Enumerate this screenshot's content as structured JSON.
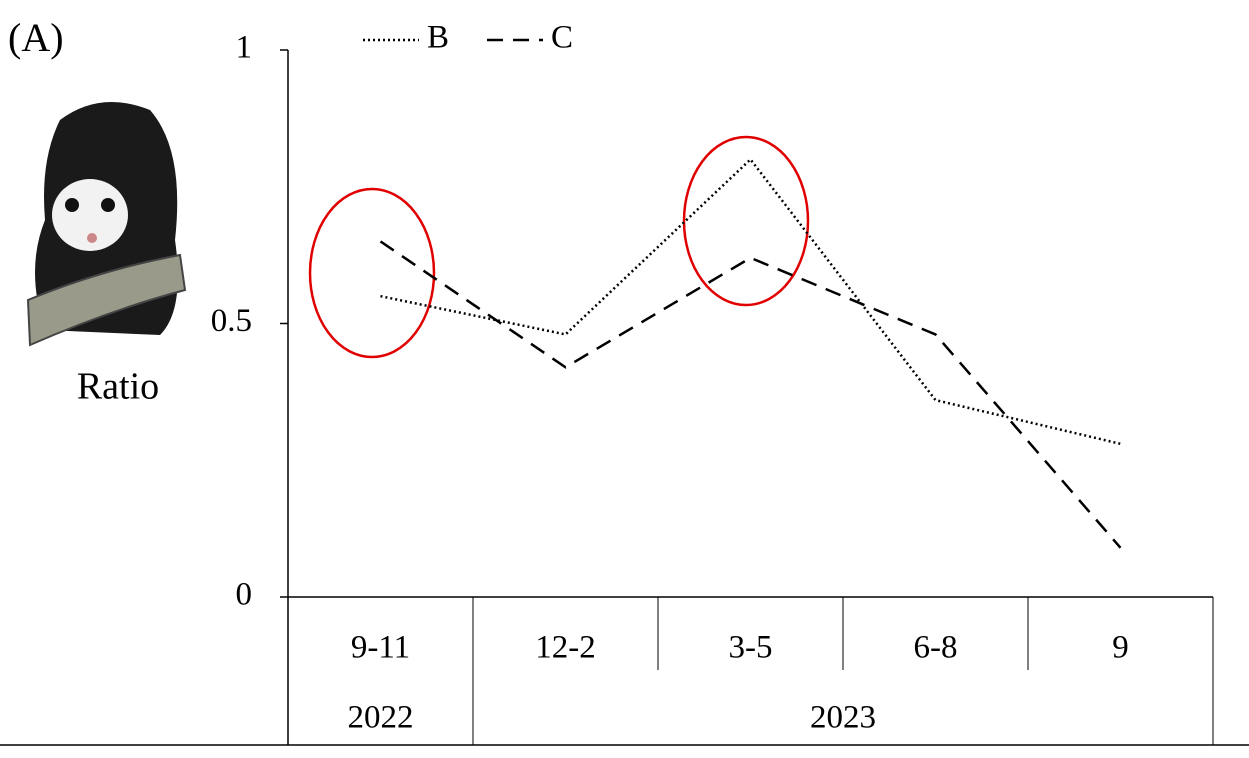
{
  "chart_data": {
    "type": "line",
    "panel_label": "(A)",
    "y_label": "Ratio",
    "categories": [
      "9-11",
      "12-2",
      "3-5",
      "6-8",
      "9"
    ],
    "groups": [
      {
        "label": "2022",
        "size": 1
      },
      {
        "label": "2023",
        "size": 4
      }
    ],
    "series": [
      {
        "name": "B",
        "color": "#000000",
        "style": "dotted",
        "values": [
          0.55,
          0.48,
          0.8,
          0.36,
          0.28
        ]
      },
      {
        "name": "C",
        "color": "#000000",
        "style": "dashed",
        "values": [
          0.65,
          0.42,
          0.62,
          0.48,
          0.09
        ]
      }
    ],
    "ylim": [
      0,
      1
    ],
    "yticks": [
      0,
      0.5,
      1
    ],
    "grid": false,
    "legend": "top"
  }
}
